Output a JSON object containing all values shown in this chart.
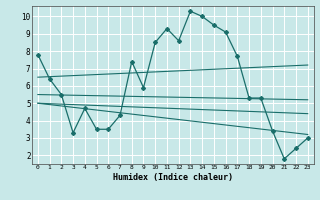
{
  "xlabel": "Humidex (Indice chaleur)",
  "bg_color": "#c8e8e8",
  "line_color": "#1a6e6a",
  "grid_color": "#b0d8d8",
  "xlim": [
    -0.5,
    23.5
  ],
  "ylim": [
    1.5,
    10.6
  ],
  "yticks": [
    2,
    3,
    4,
    5,
    6,
    7,
    8,
    9,
    10
  ],
  "xticks": [
    0,
    1,
    2,
    3,
    4,
    5,
    6,
    7,
    8,
    9,
    10,
    11,
    12,
    13,
    14,
    15,
    16,
    17,
    18,
    19,
    20,
    21,
    22,
    23
  ],
  "main_line": {
    "x": [
      0,
      1,
      2,
      3,
      4,
      5,
      6,
      7,
      8,
      9,
      10,
      11,
      12,
      13,
      14,
      15,
      16,
      17,
      18,
      19,
      20,
      21,
      22,
      23
    ],
    "y": [
      7.8,
      6.4,
      5.5,
      3.3,
      4.7,
      3.5,
      3.5,
      4.3,
      7.4,
      5.9,
      8.5,
      9.3,
      8.6,
      10.3,
      10.0,
      9.5,
      9.1,
      7.7,
      5.3,
      5.3,
      3.4,
      1.8,
      2.4,
      3.0
    ]
  },
  "diag_lines": [
    {
      "x": [
        0,
        23
      ],
      "y": [
        6.5,
        7.2
      ]
    },
    {
      "x": [
        0,
        23
      ],
      "y": [
        5.5,
        5.2
      ]
    },
    {
      "x": [
        0,
        23
      ],
      "y": [
        5.0,
        4.4
      ]
    },
    {
      "x": [
        0,
        23
      ],
      "y": [
        5.0,
        3.2
      ]
    }
  ]
}
